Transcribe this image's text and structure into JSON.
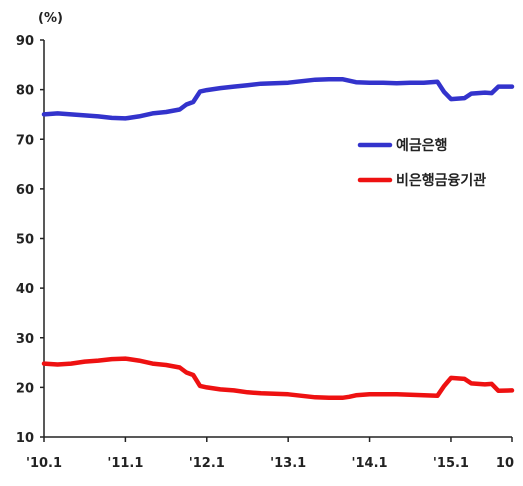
{
  "chart_data": {
    "type": "line",
    "unit_label": "(%)",
    "ylim": [
      10,
      90
    ],
    "yticks": [
      10,
      20,
      30,
      40,
      50,
      60,
      70,
      80,
      90
    ],
    "xlim": [
      0,
      69
    ],
    "xticks": [
      {
        "label": "'10.1",
        "x": 0
      },
      {
        "label": "'11.1",
        "x": 12
      },
      {
        "label": "'12.1",
        "x": 24
      },
      {
        "label": "'13.1",
        "x": 36
      },
      {
        "label": "'14.1",
        "x": 48
      },
      {
        "label": "'15.1",
        "x": 60
      },
      {
        "label": "10",
        "x": 69
      }
    ],
    "grid": false,
    "legend_position": "right",
    "series": [
      {
        "name": "예금은행",
        "color": "#3333cc",
        "points": [
          [
            0,
            75
          ],
          [
            2,
            75.2
          ],
          [
            4,
            75
          ],
          [
            6,
            74.8
          ],
          [
            8,
            74.6
          ],
          [
            10,
            74.3
          ],
          [
            12,
            74.2
          ],
          [
            14,
            74.6
          ],
          [
            16,
            75.2
          ],
          [
            18,
            75.5
          ],
          [
            20,
            76
          ],
          [
            21,
            77
          ],
          [
            22,
            77.5
          ],
          [
            23,
            79.6
          ],
          [
            24,
            79.9
          ],
          [
            26,
            80.3
          ],
          [
            28,
            80.6
          ],
          [
            30,
            80.9
          ],
          [
            32,
            81.2
          ],
          [
            34,
            81.3
          ],
          [
            36,
            81.4
          ],
          [
            38,
            81.7
          ],
          [
            40,
            82
          ],
          [
            42,
            82.1
          ],
          [
            44,
            82.1
          ],
          [
            45,
            81.8
          ],
          [
            46,
            81.5
          ],
          [
            48,
            81.4
          ],
          [
            50,
            81.4
          ],
          [
            52,
            81.3
          ],
          [
            54,
            81.4
          ],
          [
            56,
            81.4
          ],
          [
            58,
            81.6
          ],
          [
            59,
            79.5
          ],
          [
            60,
            78.1
          ],
          [
            62,
            78.3
          ],
          [
            63,
            79.2
          ],
          [
            65,
            79.4
          ],
          [
            66,
            79.3
          ],
          [
            67,
            80.6
          ],
          [
            69,
            80.6
          ]
        ]
      },
      {
        "name": "비은행금융기관",
        "color": "#ee1111",
        "points": [
          [
            0,
            24.8
          ],
          [
            2,
            24.6
          ],
          [
            4,
            24.8
          ],
          [
            6,
            25.2
          ],
          [
            8,
            25.4
          ],
          [
            10,
            25.7
          ],
          [
            12,
            25.8
          ],
          [
            14,
            25.4
          ],
          [
            16,
            24.8
          ],
          [
            18,
            24.5
          ],
          [
            20,
            24
          ],
          [
            21,
            23
          ],
          [
            22,
            22.5
          ],
          [
            23,
            20.3
          ],
          [
            24,
            20
          ],
          [
            26,
            19.6
          ],
          [
            28,
            19.4
          ],
          [
            30,
            19
          ],
          [
            32,
            18.8
          ],
          [
            34,
            18.7
          ],
          [
            36,
            18.6
          ],
          [
            38,
            18.3
          ],
          [
            40,
            18
          ],
          [
            42,
            17.9
          ],
          [
            44,
            17.9
          ],
          [
            45,
            18.1
          ],
          [
            46,
            18.4
          ],
          [
            48,
            18.6
          ],
          [
            50,
            18.6
          ],
          [
            52,
            18.6
          ],
          [
            54,
            18.5
          ],
          [
            56,
            18.4
          ],
          [
            58,
            18.3
          ],
          [
            59,
            20.3
          ],
          [
            60,
            21.9
          ],
          [
            62,
            21.7
          ],
          [
            63,
            20.8
          ],
          [
            65,
            20.6
          ],
          [
            66,
            20.7
          ],
          [
            67,
            19.3
          ],
          [
            69,
            19.4
          ]
        ]
      }
    ]
  }
}
